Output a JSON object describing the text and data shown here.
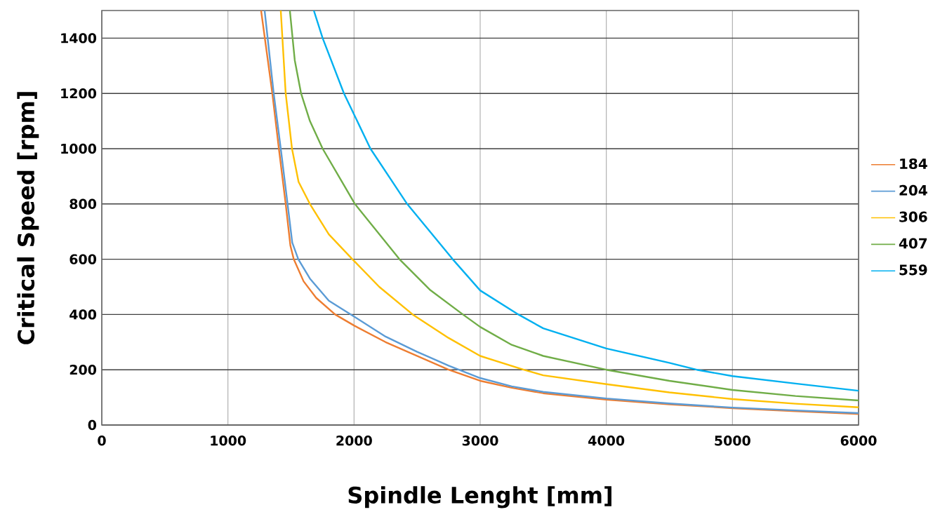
{
  "chart_data": {
    "type": "line",
    "xlabel": "Spindle Lenght [mm]",
    "ylabel": "Critical Speed [rpm]",
    "xlim": [
      0,
      6000
    ],
    "ylim": [
      0,
      1500
    ],
    "xticks": [
      0,
      1000,
      2000,
      3000,
      4000,
      5000,
      6000
    ],
    "yticks": [
      0,
      200,
      400,
      600,
      800,
      1000,
      1200,
      1400
    ],
    "grid": true,
    "legend": "right",
    "marker": "none",
    "line_style": "solid",
    "series": [
      {
        "name": "184",
        "color": "#ed7d31",
        "x": [
          1263,
          1352,
          1404,
          1458,
          1495,
          1522,
          1600,
          1700,
          1850,
          2000,
          2250,
          2500,
          2750,
          3000,
          3250,
          3500,
          4000,
          4500,
          5000,
          5500,
          6000
        ],
        "values": [
          1500,
          1200,
          1000,
          800,
          650,
          600,
          520,
          460,
          400,
          360,
          300,
          250,
          200,
          160,
          135,
          115,
          92,
          75,
          61,
          50,
          40
        ]
      },
      {
        "name": "204",
        "color": "#5b9bd5",
        "x": [
          1291,
          1363,
          1419,
          1473,
          1510,
          1558,
          1650,
          1800,
          1975,
          2250,
          2500,
          2750,
          3000,
          3250,
          3500,
          4000,
          4500,
          5000,
          5500,
          6000
        ],
        "values": [
          1500,
          1200,
          1000,
          800,
          660,
          600,
          530,
          450,
          400,
          320,
          265,
          215,
          170,
          140,
          120,
          96,
          78,
          63,
          53,
          43
        ]
      },
      {
        "name": "306",
        "color": "#ffc000",
        "x": [
          1419,
          1458,
          1508,
          1560,
          1650,
          1800,
          1987,
          2200,
          2465,
          2750,
          3000,
          3345,
          3500,
          4000,
          4500,
          5000,
          5500,
          6000
        ],
        "values": [
          1500,
          1200,
          1000,
          880,
          800,
          690,
          600,
          500,
          400,
          315,
          250,
          200,
          180,
          148,
          118,
          94,
          77,
          64
        ]
      },
      {
        "name": "407",
        "color": "#70ad47",
        "x": [
          1491,
          1530,
          1580,
          1650,
          1751,
          2007,
          2360,
          2600,
          2863,
          3000,
          3250,
          3500,
          4000,
          4500,
          5000,
          5500,
          6000
        ],
        "values": [
          1500,
          1320,
          1200,
          1100,
          1000,
          800,
          600,
          490,
          400,
          355,
          290,
          250,
          200,
          160,
          127,
          105,
          89
        ]
      },
      {
        "name": "559",
        "color": "#00b0f0",
        "x": [
          1681,
          1751,
          1920,
          2130,
          2421,
          2782,
          3000,
          3303,
          3500,
          4000,
          4500,
          4717,
          5000,
          5500,
          6000
        ],
        "values": [
          1500,
          1400,
          1200,
          1000,
          800,
          600,
          487,
          400,
          350,
          277,
          225,
          200,
          177,
          150,
          124
        ]
      }
    ]
  }
}
